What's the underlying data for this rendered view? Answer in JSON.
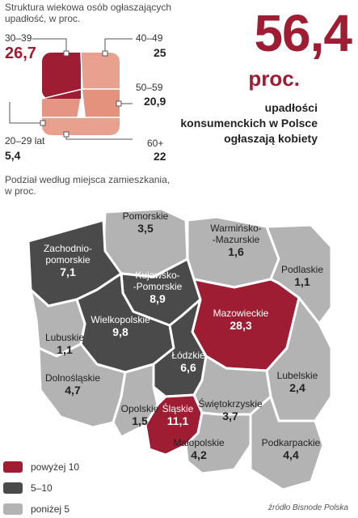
{
  "age_chart": {
    "title": "Struktura wiekowa osób ogłaszających upadłość, w proc.",
    "groups": [
      {
        "label": "30–39",
        "value": "26,7"
      },
      {
        "label": "40–49",
        "value": "25"
      },
      {
        "label": "50–59",
        "value": "20,9"
      },
      {
        "label": "20–29 lat",
        "value": "5,4"
      },
      {
        "label": "60+",
        "value": "22"
      }
    ]
  },
  "headline": {
    "number": "56,4",
    "unit": "proc.",
    "description_lines": [
      "upadłości",
      "konsumenckich w Polsce",
      "ogłaszają kobiety"
    ]
  },
  "map": {
    "subtitle": "Podział według miejsca zamieszkania, w proc.",
    "regions": [
      {
        "name_lines": [
          "Pomorskie"
        ],
        "value": "3,5",
        "cat": "low"
      },
      {
        "name_lines": [
          "Zachodnio-",
          "pomorskie"
        ],
        "value": "7,1",
        "cat": "mid"
      },
      {
        "name_lines": [
          "Warmińsko-",
          "-Mazurskie"
        ],
        "value": "1,6",
        "cat": "low"
      },
      {
        "name_lines": [
          "Podlaskie"
        ],
        "value": "1,1",
        "cat": "low"
      },
      {
        "name_lines": [
          "Kujawsko-",
          "-Pomorskie"
        ],
        "value": "8,9",
        "cat": "mid"
      },
      {
        "name_lines": [
          "Mazowieckie"
        ],
        "value": "28,3",
        "cat": "high"
      },
      {
        "name_lines": [
          "Wielkopolskie"
        ],
        "value": "9,8",
        "cat": "mid"
      },
      {
        "name_lines": [
          "Lubuskie"
        ],
        "value": "1,1",
        "cat": "low"
      },
      {
        "name_lines": [
          "Łódzkie"
        ],
        "value": "6,6",
        "cat": "mid"
      },
      {
        "name_lines": [
          "Lubelskie"
        ],
        "value": "2,4",
        "cat": "low"
      },
      {
        "name_lines": [
          "Dolnośląskie"
        ],
        "value": "4,7",
        "cat": "low"
      },
      {
        "name_lines": [
          "Opolskie"
        ],
        "value": "1,5",
        "cat": "low"
      },
      {
        "name_lines": [
          "Śląskie"
        ],
        "value": "11,1",
        "cat": "high"
      },
      {
        "name_lines": [
          "Świętokrzyskie"
        ],
        "value": "3,7",
        "cat": "low"
      },
      {
        "name_lines": [
          "Małopolskie"
        ],
        "value": "4,2",
        "cat": "low"
      },
      {
        "name_lines": [
          "Podkarpackie"
        ],
        "value": "4,4",
        "cat": "low"
      }
    ]
  },
  "legend": [
    {
      "label": "powyżej 10",
      "cat": "high"
    },
    {
      "label": "5–10",
      "cat": "mid"
    },
    {
      "label": "poniżej 5",
      "cat": "low"
    }
  ],
  "colors": {
    "high": "#9e1d32",
    "mid": "#4a4a4a",
    "low": "#b3b3b3",
    "age_dark": "#9e1d32",
    "age_light": "#e8a18f"
  },
  "source": "źródło Bisnode Polska",
  "chart_data": [
    {
      "type": "pie",
      "title": "Struktura wiekowa osób ogłaszających upadłość, w proc.",
      "categories": [
        "20–29 lat",
        "30–39",
        "40–49",
        "50–59",
        "60+"
      ],
      "values": [
        5.4,
        26.7,
        25,
        20.9,
        22
      ]
    },
    {
      "type": "bar",
      "title": "Podział według miejsca zamieszkania, w proc.",
      "categories": [
        "Pomorskie",
        "Zachodniopomorskie",
        "Warmińsko-Mazurskie",
        "Podlaskie",
        "Kujawsko-Pomorskie",
        "Mazowieckie",
        "Wielkopolskie",
        "Lubuskie",
        "Łódzkie",
        "Lubelskie",
        "Dolnośląskie",
        "Opolskie",
        "Śląskie",
        "Świętokrzyskie",
        "Małopolskie",
        "Podkarpackie"
      ],
      "values": [
        3.5,
        7.1,
        1.6,
        1.1,
        8.9,
        28.3,
        9.8,
        1.1,
        6.6,
        2.4,
        4.7,
        1.5,
        11.1,
        3.7,
        4.2,
        4.4
      ]
    }
  ]
}
